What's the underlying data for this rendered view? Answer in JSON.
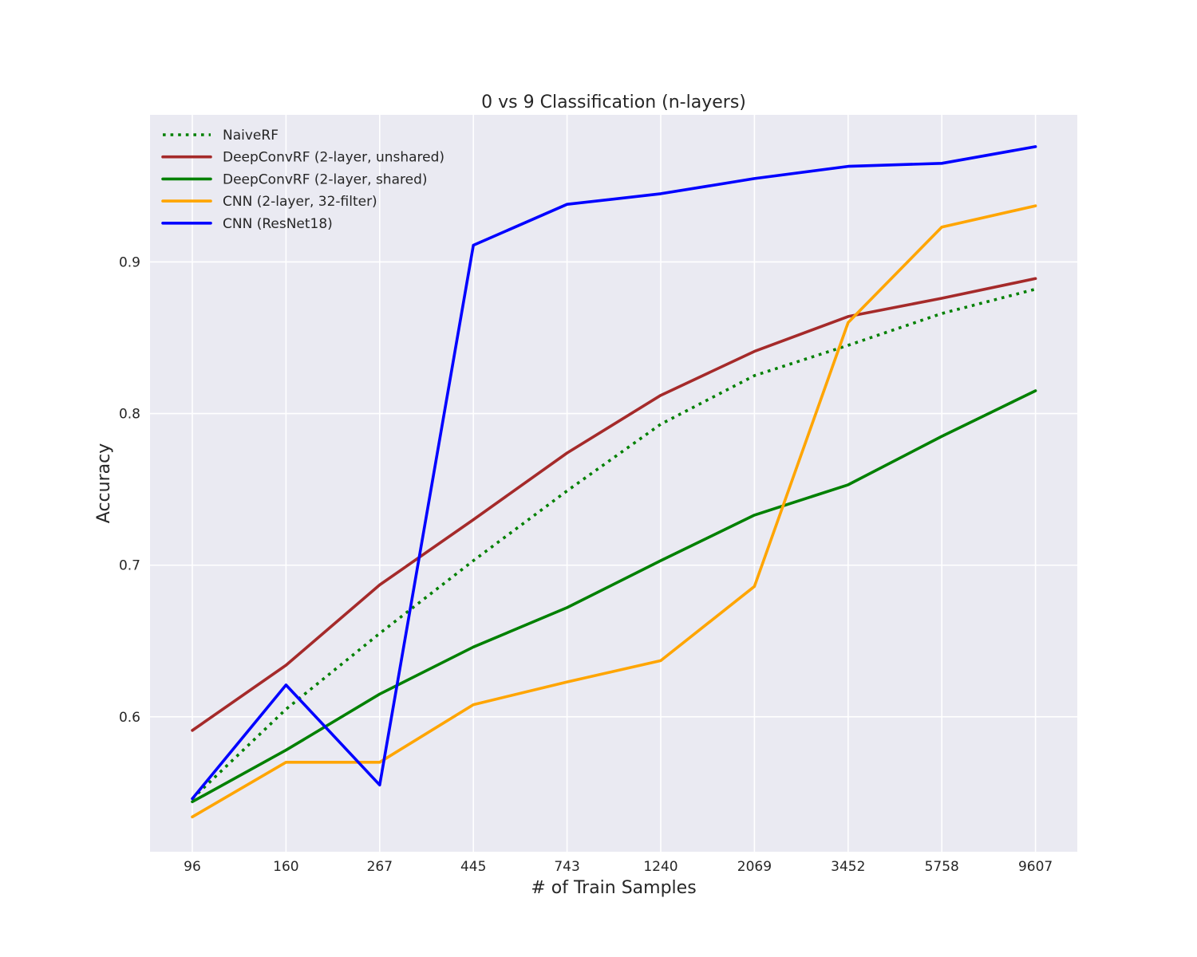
{
  "chart_data": {
    "type": "line",
    "title": "0 vs 9 Classification (n-layers)",
    "xlabel": "# of Train Samples",
    "ylabel": "Accuracy",
    "categories": [
      "96",
      "160",
      "267",
      "445",
      "743",
      "1240",
      "2069",
      "3452",
      "5758",
      "9607"
    ],
    "yticks": [
      0.6,
      0.7,
      0.8,
      0.9
    ],
    "yticklabels": [
      "0.6",
      "0.7",
      "0.8",
      "0.9"
    ],
    "ylim": [
      0.511,
      0.997
    ],
    "grid": true,
    "legend_position": "top-left",
    "background_color": "#eaeaf2",
    "series": [
      {
        "name": "NaiveRF",
        "color": "#008000",
        "style": "dotted",
        "values": [
          0.546,
          0.605,
          0.655,
          0.703,
          0.749,
          0.793,
          0.825,
          0.845,
          0.866,
          0.882
        ]
      },
      {
        "name": "DeepConvRF (2-layer, unshared)",
        "color": "#a52a2a",
        "style": "solid",
        "values": [
          0.591,
          0.634,
          0.687,
          0.73,
          0.774,
          0.812,
          0.841,
          0.864,
          0.876,
          0.889
        ]
      },
      {
        "name": "DeepConvRF (2-layer, shared)",
        "color": "#008000",
        "style": "solid",
        "values": [
          0.544,
          0.578,
          0.615,
          0.646,
          0.672,
          0.703,
          0.733,
          0.753,
          0.785,
          0.815
        ]
      },
      {
        "name": "CNN (2-layer, 32-filter)",
        "color": "#ffa500",
        "style": "solid",
        "values": [
          0.534,
          0.57,
          0.57,
          0.608,
          0.623,
          0.637,
          0.686,
          0.86,
          0.923,
          0.937
        ]
      },
      {
        "name": "CNN (ResNet18)",
        "color": "#0000ff",
        "style": "solid",
        "values": [
          0.546,
          0.621,
          0.555,
          0.911,
          0.938,
          0.945,
          0.955,
          0.963,
          0.965,
          0.976
        ]
      }
    ]
  }
}
